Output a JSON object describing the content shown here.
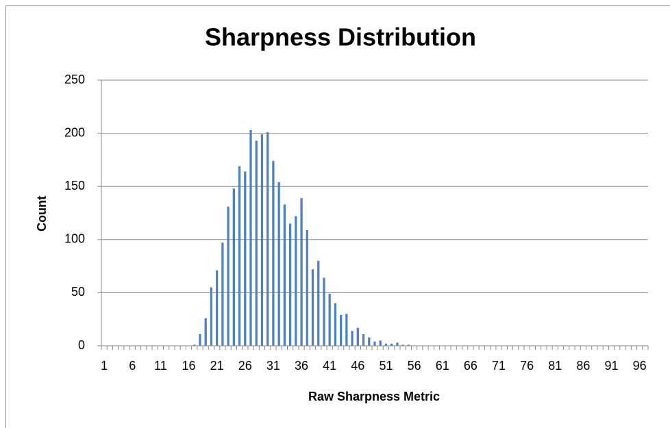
{
  "chart_data": {
    "type": "bar",
    "title": "Sharpness Distribution",
    "x_label": "Raw Sharpness Metric",
    "y_label": "Count",
    "categories": [
      1,
      null,
      null,
      null,
      null,
      6,
      null,
      null,
      null,
      null,
      11,
      null,
      null,
      null,
      null,
      16,
      null,
      null,
      null,
      null,
      21,
      null,
      null,
      null,
      null,
      26,
      null,
      null,
      null,
      null,
      31,
      null,
      null,
      null,
      null,
      36,
      null,
      null,
      null,
      null,
      41,
      null,
      null,
      null,
      null,
      46,
      null,
      null,
      null,
      null,
      51,
      null,
      null,
      null,
      null,
      56,
      null,
      null,
      null,
      null,
      61,
      null,
      null,
      null,
      null,
      66,
      null,
      null,
      null,
      null,
      71,
      null,
      null,
      null,
      null,
      76,
      null,
      null,
      null,
      null,
      81,
      null,
      null,
      null,
      null,
      86,
      null,
      null,
      null,
      null,
      91,
      null,
      null,
      null,
      null,
      96,
      null
    ],
    "values": [
      0,
      0,
      0,
      0,
      0,
      0,
      0,
      0,
      0,
      0,
      0,
      0,
      0,
      0,
      0,
      0,
      1,
      11,
      26,
      55,
      71,
      97,
      131,
      148,
      169,
      164,
      203,
      193,
      199,
      201,
      174,
      154,
      133,
      115,
      122,
      139,
      109,
      72,
      80,
      64,
      49,
      40,
      29,
      30,
      14,
      17,
      11,
      8,
      4,
      5,
      2,
      2,
      3,
      1,
      1,
      0,
      0,
      0,
      0,
      0,
      0,
      0,
      0,
      0,
      0,
      0,
      0,
      0,
      0,
      0,
      0,
      0,
      0,
      0,
      0,
      0,
      0,
      0,
      0,
      0,
      0,
      0,
      0,
      0,
      0,
      0,
      0,
      0,
      0,
      0,
      0,
      0,
      0,
      0,
      0,
      0,
      0
    ],
    "color": "#4f81bd",
    "ylim": [
      0,
      250
    ],
    "yticks": [
      0,
      50,
      100,
      150,
      200,
      250
    ],
    "grid": true
  }
}
